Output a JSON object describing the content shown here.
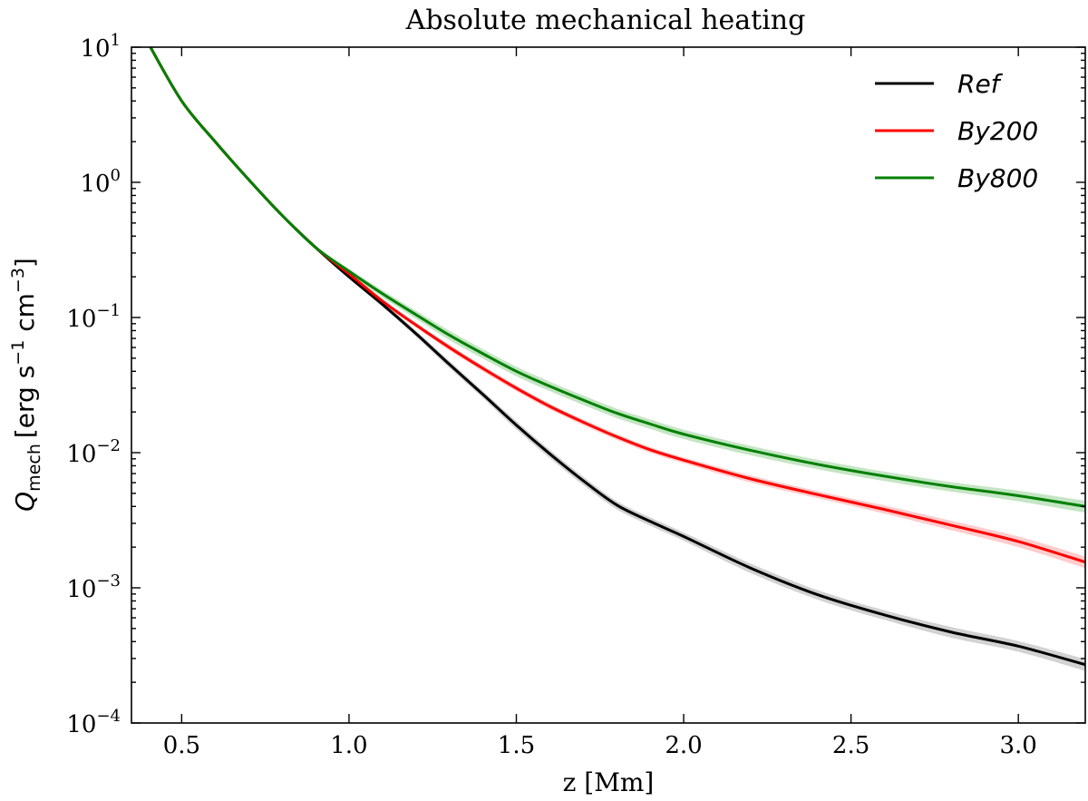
{
  "chart_data": {
    "type": "line",
    "title": "Absolute mechanical heating",
    "xlabel": "z [Mm]",
    "ylabel": {
      "symbol": "Q",
      "subscript": "mech",
      "units_open": "[erg s",
      "exp1": "−1",
      "units_mid": " cm",
      "exp2": "−3",
      "units_close": "]"
    },
    "xlim": [
      0.35,
      3.2
    ],
    "ylim": [
      0.0001,
      10
    ],
    "yscale": "log",
    "grid": false,
    "legend_position": "top-right",
    "x_ticks": [
      {
        "value": 0.5,
        "label": "0.5"
      },
      {
        "value": 1.0,
        "label": "1.0"
      },
      {
        "value": 1.5,
        "label": "1.5"
      },
      {
        "value": 2.0,
        "label": "2.0"
      },
      {
        "value": 2.5,
        "label": "2.5"
      },
      {
        "value": 3.0,
        "label": "3.0"
      }
    ],
    "y_ticks": [
      {
        "value": 10,
        "base": "10",
        "exp": "1"
      },
      {
        "value": 1,
        "base": "10",
        "exp": "0"
      },
      {
        "value": 0.1,
        "base": "10",
        "exp": "−1"
      },
      {
        "value": 0.01,
        "base": "10",
        "exp": "−2"
      },
      {
        "value": 0.001,
        "base": "10",
        "exp": "−3"
      },
      {
        "value": 0.0001,
        "base": "10",
        "exp": "−4"
      }
    ],
    "series": [
      {
        "name": "Ref",
        "color": "#000000",
        "band_color": "#7f7f7f",
        "band_opacity": 0.35,
        "x": [
          0.4,
          0.5,
          0.6,
          0.7,
          0.8,
          0.9,
          1.0,
          1.1,
          1.2,
          1.3,
          1.4,
          1.5,
          1.6,
          1.7,
          1.8,
          1.9,
          2.0,
          2.2,
          2.4,
          2.6,
          2.8,
          3.0,
          3.2
        ],
        "y": [
          10.7,
          4.0,
          2.0,
          1.05,
          0.57,
          0.33,
          0.2,
          0.125,
          0.076,
          0.045,
          0.027,
          0.016,
          0.0098,
          0.0062,
          0.0041,
          0.0031,
          0.0024,
          0.0014,
          0.00089,
          0.00063,
          0.00047,
          0.00037,
          0.00027
        ],
        "band": [
          0.02,
          0.02,
          0.02,
          0.02,
          0.02,
          0.02,
          0.03,
          0.04,
          0.05,
          0.06,
          0.06,
          0.07,
          0.07,
          0.07,
          0.07,
          0.07,
          0.07,
          0.08,
          0.08,
          0.08,
          0.09,
          0.09,
          0.1
        ]
      },
      {
        "name": "By200",
        "color": "#ff0000",
        "band_color": "#ff0000",
        "band_opacity": 0.2,
        "x": [
          0.4,
          0.5,
          0.6,
          0.7,
          0.8,
          0.9,
          1.0,
          1.1,
          1.2,
          1.3,
          1.4,
          1.5,
          1.6,
          1.7,
          1.8,
          1.9,
          2.0,
          2.2,
          2.4,
          2.6,
          2.8,
          3.0,
          3.2
        ],
        "y": [
          10.7,
          4.0,
          2.0,
          1.05,
          0.57,
          0.33,
          0.21,
          0.132,
          0.088,
          0.06,
          0.042,
          0.03,
          0.022,
          0.0168,
          0.0131,
          0.0105,
          0.0088,
          0.0064,
          0.0049,
          0.0038,
          0.0029,
          0.0022,
          0.00155
        ],
        "band": [
          0.02,
          0.02,
          0.02,
          0.02,
          0.02,
          0.02,
          0.03,
          0.04,
          0.04,
          0.05,
          0.05,
          0.05,
          0.05,
          0.05,
          0.05,
          0.05,
          0.05,
          0.06,
          0.06,
          0.07,
          0.08,
          0.09,
          0.1
        ]
      },
      {
        "name": "By800",
        "color": "#008000",
        "band_color": "#2ca02c",
        "band_opacity": 0.28,
        "x": [
          0.4,
          0.5,
          0.6,
          0.7,
          0.8,
          0.9,
          1.0,
          1.1,
          1.2,
          1.3,
          1.4,
          1.5,
          1.6,
          1.7,
          1.8,
          1.9,
          2.0,
          2.2,
          2.4,
          2.6,
          2.8,
          3.0,
          3.2
        ],
        "y": [
          10.7,
          4.0,
          2.0,
          1.05,
          0.57,
          0.33,
          0.22,
          0.15,
          0.105,
          0.074,
          0.054,
          0.04,
          0.031,
          0.0245,
          0.0196,
          0.0163,
          0.0137,
          0.0104,
          0.0082,
          0.0067,
          0.0056,
          0.0048,
          0.004
        ],
        "band": [
          0.02,
          0.02,
          0.02,
          0.02,
          0.02,
          0.02,
          0.04,
          0.06,
          0.07,
          0.08,
          0.08,
          0.08,
          0.08,
          0.08,
          0.08,
          0.08,
          0.08,
          0.08,
          0.08,
          0.08,
          0.08,
          0.09,
          0.1
        ]
      }
    ]
  }
}
